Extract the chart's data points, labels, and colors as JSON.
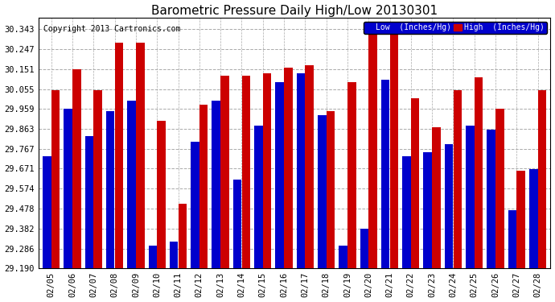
{
  "title": "Barometric Pressure Daily High/Low 20130301",
  "copyright": "Copyright 2013 Cartronics.com",
  "dates": [
    "02/05",
    "02/06",
    "02/07",
    "02/08",
    "02/09",
    "02/10",
    "02/11",
    "02/12",
    "02/13",
    "02/14",
    "02/15",
    "02/16",
    "02/17",
    "02/18",
    "02/19",
    "02/20",
    "02/21",
    "02/22",
    "02/23",
    "02/24",
    "02/25",
    "02/26",
    "02/27",
    "02/28"
  ],
  "low": [
    29.73,
    29.96,
    29.83,
    29.95,
    30.0,
    29.3,
    29.32,
    29.8,
    30.0,
    29.62,
    29.88,
    30.09,
    30.13,
    29.93,
    29.3,
    29.38,
    30.1,
    29.73,
    29.75,
    29.79,
    29.88,
    29.86,
    29.47,
    29.67
  ],
  "high": [
    30.05,
    30.15,
    30.05,
    30.28,
    30.28,
    29.9,
    29.5,
    29.98,
    30.12,
    30.12,
    30.13,
    30.16,
    30.17,
    29.95,
    30.09,
    30.33,
    30.35,
    30.01,
    29.87,
    30.05,
    30.11,
    29.96,
    29.66,
    30.05
  ],
  "ymin": 29.19,
  "ymax": 30.4,
  "yticks": [
    29.19,
    29.286,
    29.382,
    29.478,
    29.574,
    29.671,
    29.767,
    29.863,
    29.959,
    30.055,
    30.151,
    30.247,
    30.343
  ],
  "low_color": "#0000cc",
  "high_color": "#cc0000",
  "bg_color": "#ffffff",
  "grid_color": "#aaaaaa",
  "title_color": "#000000",
  "legend_low_label": "Low  (Inches/Hg)",
  "legend_high_label": "High  (Inches/Hg)",
  "title_fontsize": 11,
  "copyright_fontsize": 7,
  "tick_fontsize": 7.5,
  "bar_width": 0.4,
  "bar_gap": 0.01
}
